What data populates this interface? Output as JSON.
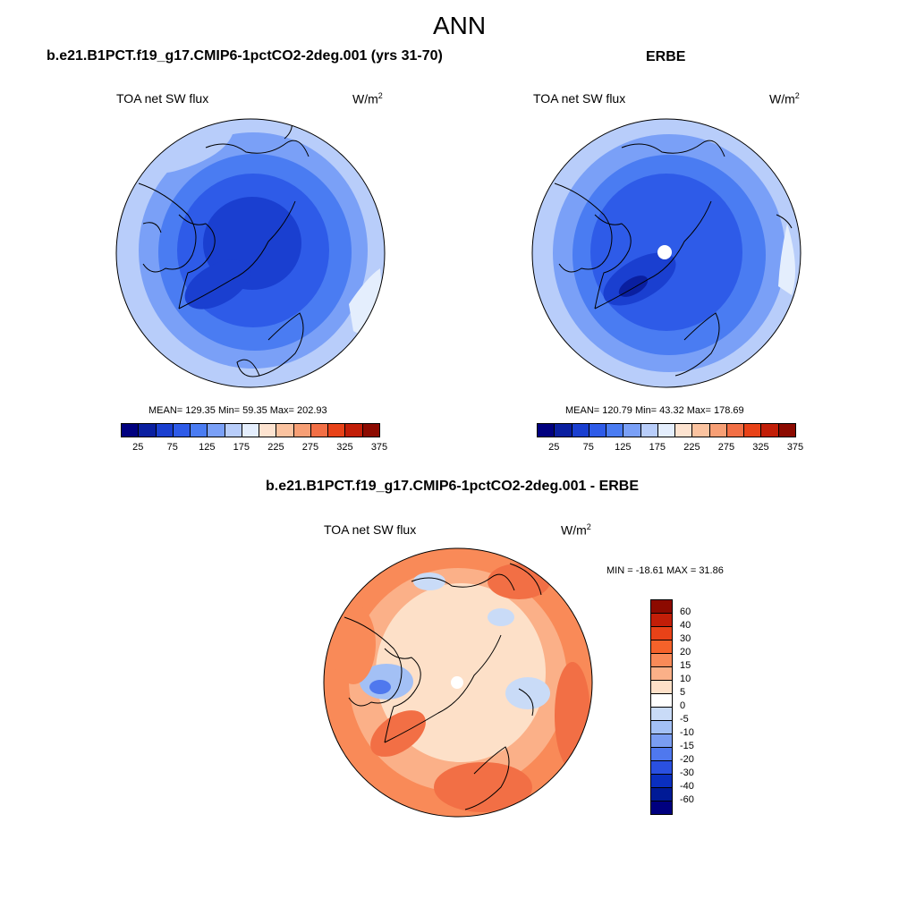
{
  "main_title": "ANN",
  "panels": [
    {
      "id": "model",
      "header": "b.e21.B1PCT.f19_g17.CMIP6-1pctCO2-2deg.001 (yrs 31-70)",
      "field_label": "TOA net SW flux",
      "units_base": "W/m",
      "units_exp": "2",
      "stats": "MEAN= 129.35  Min=  59.35  Max= 202.93",
      "mean": 129.35,
      "min": 59.35,
      "max": 202.93
    },
    {
      "id": "obs",
      "header": "ERBE",
      "field_label": "TOA net SW flux",
      "units_base": "W/m",
      "units_exp": "2",
      "stats": "MEAN= 120.79  Min=  43.32  Max= 178.69",
      "mean": 120.79,
      "min": 43.32,
      "max": 178.69
    },
    {
      "id": "diff",
      "header": "b.e21.B1PCT.f19_g17.CMIP6-1pctCO2-2deg.001 - ERBE",
      "field_label": "TOA net SW flux",
      "units_base": "W/m",
      "units_exp": "2",
      "stats": "MIN = -18.61 MAX =  31.86",
      "min": -18.61,
      "max": 31.86
    }
  ],
  "abs_colorbar": {
    "colors": [
      "#00007f",
      "#0a1fa0",
      "#1a3fd0",
      "#2e5be8",
      "#4a7cf2",
      "#7aa0f7",
      "#b8cdfa",
      "#e4eefd",
      "#fde3d0",
      "#fbc3a0",
      "#f79f75",
      "#f26f45",
      "#e84218",
      "#c21e08",
      "#8c0a00"
    ],
    "tick_labels": [
      "25",
      "75",
      "125",
      "175",
      "225",
      "275",
      "325",
      "375"
    ]
  },
  "diff_colorbar": {
    "colors": [
      "#8c0a00",
      "#c21e08",
      "#e84218",
      "#f5622a",
      "#f98a58",
      "#fbb088",
      "#fde0c8",
      "#ffffff",
      "#c9dbf7",
      "#a3c0f5",
      "#7a9df2",
      "#4f78ee",
      "#2a50e0",
      "#0a2fc0",
      "#001a96",
      "#00007f"
    ],
    "tick_labels": [
      "60",
      "40",
      "30",
      "20",
      "15",
      "10",
      "5",
      "0",
      "-5",
      "-10",
      "-15",
      "-20",
      "-30",
      "-40",
      "-60"
    ]
  },
  "chart_data": {
    "type": "heatmap",
    "projection": "north-polar-stereographic",
    "maps": [
      {
        "name": "b.e21.B1PCT.f19_g17.CMIP6-1pctCO2-2deg.001 (yrs 31-70)",
        "mean": 129.35,
        "min": 59.35,
        "max": 202.93,
        "levels": [
          25,
          50,
          75,
          100,
          125,
          150,
          175,
          200,
          225,
          250,
          275,
          300,
          325,
          350,
          375
        ]
      },
      {
        "name": "ERBE",
        "mean": 120.79,
        "min": 43.32,
        "max": 178.69,
        "levels": [
          25,
          50,
          75,
          100,
          125,
          150,
          175,
          200,
          225,
          250,
          275,
          300,
          325,
          350,
          375
        ]
      },
      {
        "name": "b.e21.B1PCT.f19_g17.CMIP6-1pctCO2-2deg.001 - ERBE",
        "min": -18.61,
        "max": 31.86,
        "levels": [
          -60,
          -40,
          -30,
          -20,
          -15,
          -10,
          -5,
          0,
          5,
          10,
          15,
          20,
          30,
          40,
          60
        ]
      }
    ]
  }
}
